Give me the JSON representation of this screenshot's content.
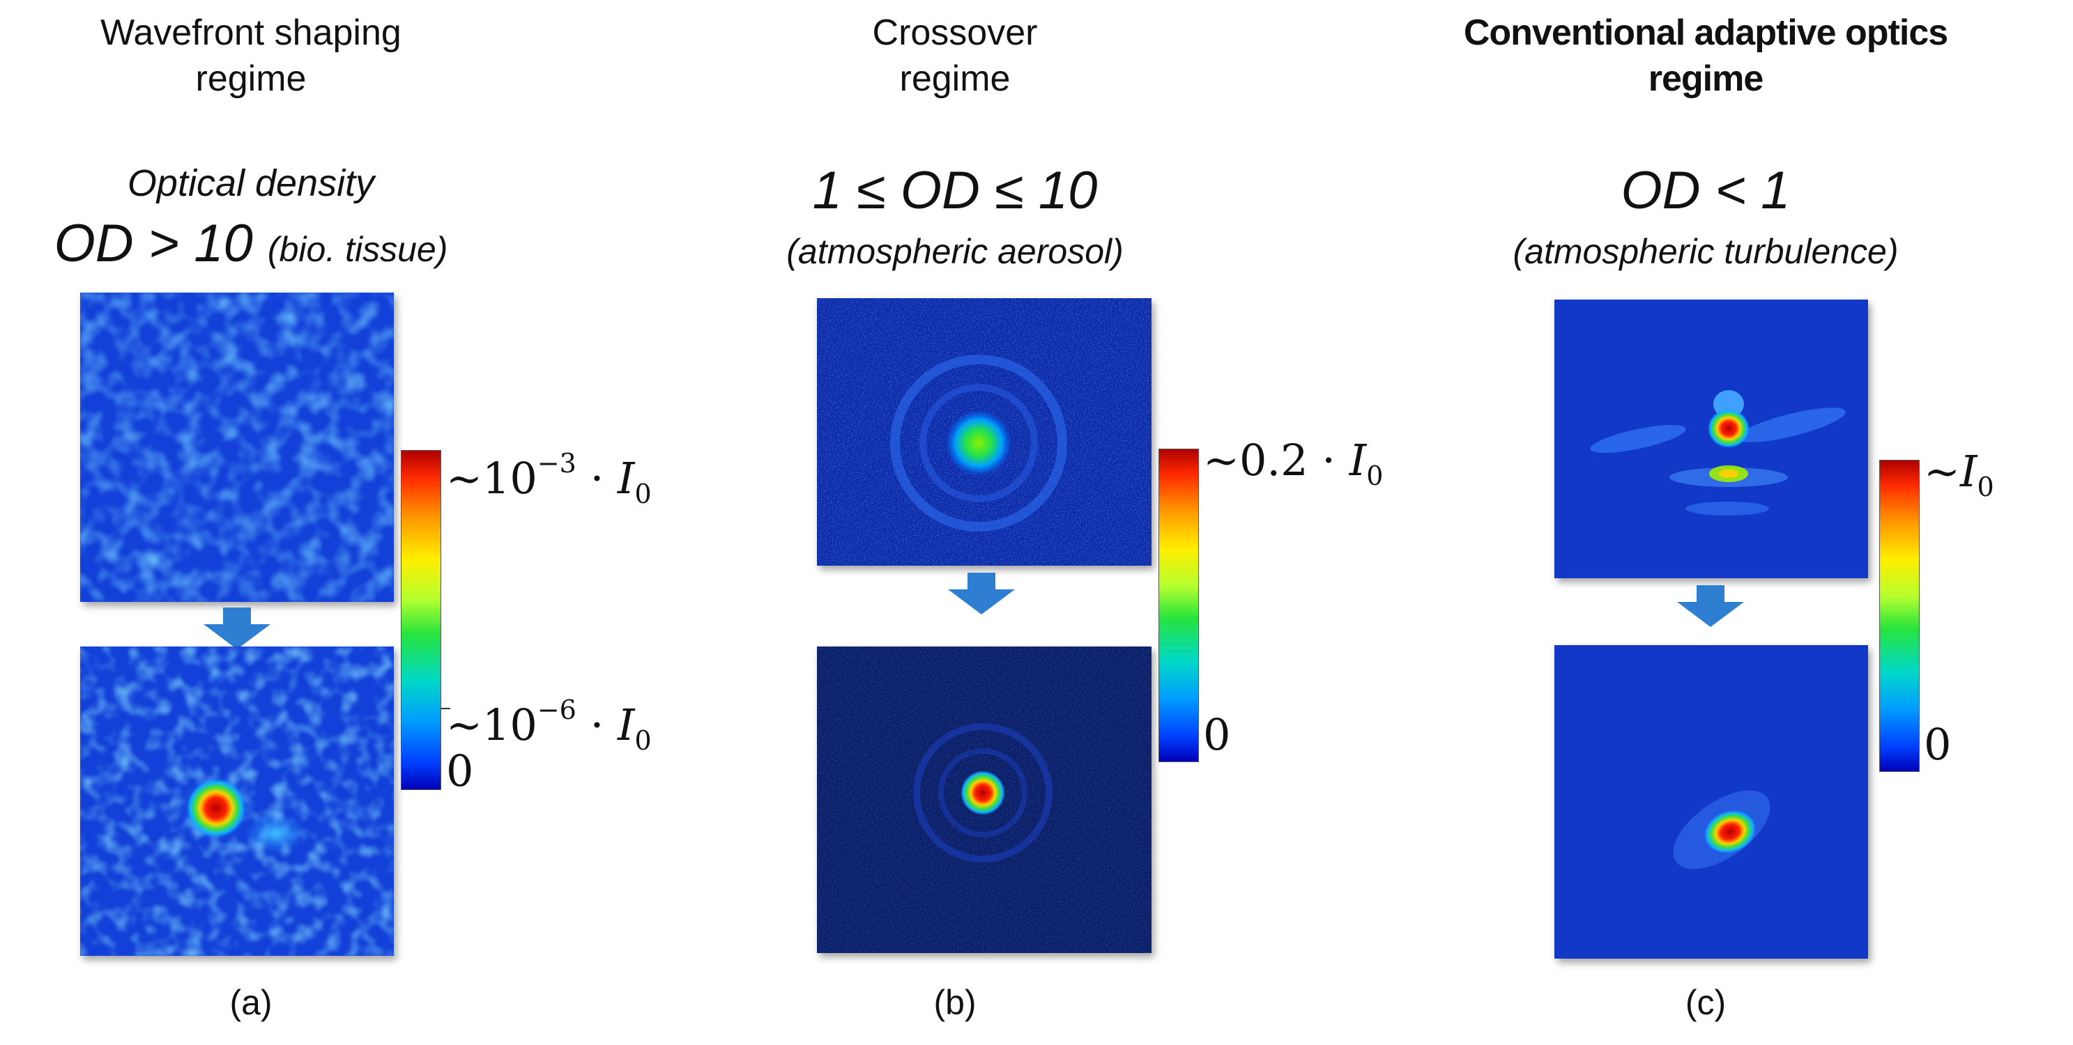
{
  "panels": [
    {
      "regime_line1": "Wavefront shaping",
      "regime_line2": "regime",
      "density_label": "Optical density",
      "od_main": "OD > 10",
      "od_note": "(bio. tissue)",
      "colorbar": {
        "top_label": "~10",
        "top_exp": "−3",
        "mid_label": "~10",
        "mid_exp": "−6",
        "intensity_symbol": "I",
        "intensity_sub": "0",
        "bottom_label": "0"
      },
      "caption": "(a)"
    },
    {
      "regime_line1": "Crossover",
      "regime_line2": "regime",
      "od_main": "1 ≤ OD ≤ 10",
      "od_note": "(atmospheric aerosol)",
      "colorbar": {
        "top_label": "~0.2 · ",
        "intensity_symbol": "I",
        "intensity_sub": "0",
        "bottom_label": "0"
      },
      "caption": "(b)"
    },
    {
      "regime_line1": "Conventional adaptive optics",
      "regime_line2": "regime",
      "od_main": "OD < 1",
      "od_note": "(atmospheric turbulence)",
      "colorbar": {
        "top_label": "~",
        "intensity_symbol": "I",
        "intensity_sub": "0",
        "bottom_label": "0"
      },
      "caption": "(c)"
    }
  ],
  "colors": {
    "arrow": "#2e7fd1",
    "background_blue": "#1238c8",
    "dark_blue": "#0b1e66"
  }
}
